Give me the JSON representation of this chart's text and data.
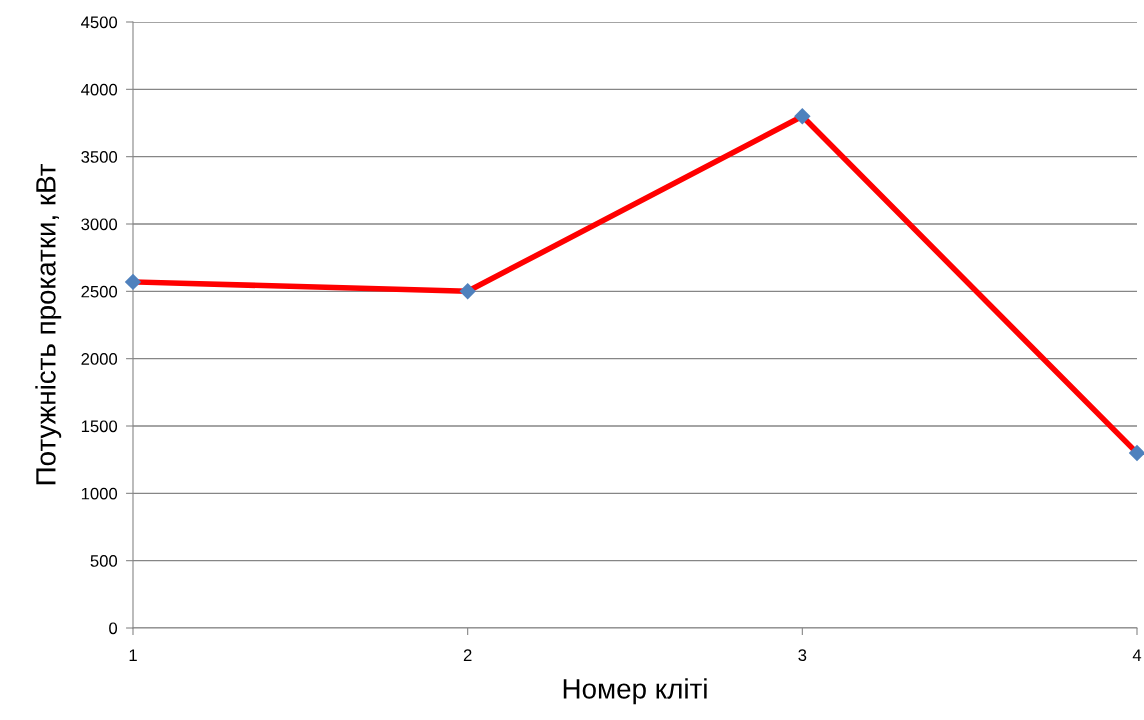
{
  "chart_data": {
    "type": "line",
    "xlabel": "Номер кліті",
    "ylabel": "Потужність прокатки, кВт",
    "x": [
      1,
      2,
      3,
      4
    ],
    "series": [
      {
        "color": "#ff0000",
        "colors": [
          "#4f81bd",
          "#4f81bd",
          "#4f81bd",
          "#4f81bd"
        ],
        "values": [
          2570,
          2500,
          3800,
          1300
        ]
      }
    ],
    "xlim": [
      1,
      4
    ],
    "xticks": [
      1,
      2,
      3,
      4
    ],
    "ylim": [
      0,
      4500
    ],
    "yticks": [
      0,
      500,
      1000,
      1500,
      2000,
      2500,
      3000,
      3500,
      4000,
      4500
    ],
    "grid": "y",
    "marker": "diamond",
    "line_style": "solid",
    "legend": false
  }
}
